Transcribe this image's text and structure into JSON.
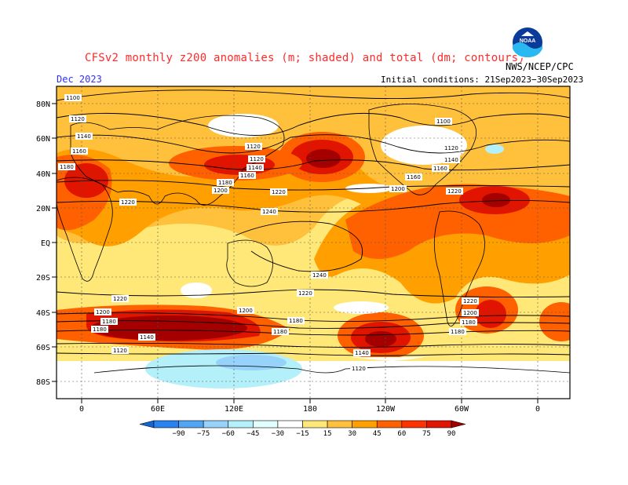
{
  "header": {
    "title": "CFSv2 monthly z200 anomalies (m; shaded) and total (dm; contours)",
    "month": "Dec 2023",
    "initial_conditions": "Initial conditions: 21Sep2023−30Sep2023",
    "agency": "NWS/NCEP/CPC",
    "logo_text": "NOAA"
  },
  "axes": {
    "lat_labels": [
      "80N",
      "60N",
      "40N",
      "20N",
      "EQ",
      "20S",
      "40S",
      "60S",
      "80S"
    ],
    "lon_labels": [
      "0",
      "60E",
      "120E",
      "180",
      "120W",
      "60W",
      "0"
    ]
  },
  "contour_labels": [
    "1100",
    "1120",
    "1140",
    "1160",
    "1180",
    "1200",
    "1220",
    "1240"
  ],
  "colorbar": {
    "ticks": [
      "−90",
      "−75",
      "−60",
      "−45",
      "−30",
      "−15",
      "15",
      "30",
      "45",
      "60",
      "75",
      "90"
    ],
    "colors": [
      "#1464d2",
      "#2882f0",
      "#50a5f5",
      "#96d2fa",
      "#b4f0fa",
      "#e1ffff",
      "#ffffff",
      "#ffe878",
      "#ffc03c",
      "#ffa000",
      "#ff6000",
      "#ff3200",
      "#e11400",
      "#a50000"
    ]
  }
}
